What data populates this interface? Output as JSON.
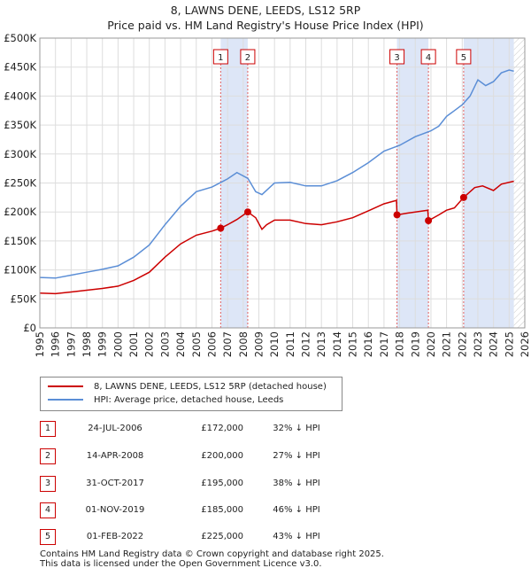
{
  "title_line1": "8, LAWNS DENE, LEEDS, LS12 5RP",
  "title_line2": "Price paid vs. HM Land Registry's House Price Index (HPI)",
  "colors": {
    "property": "#cc0000",
    "hpi": "#5b8ed6",
    "shade": "#dde6f7",
    "grid": "#dddddd"
  },
  "chart_data": {
    "type": "line",
    "title": "8, LAWNS DENE, LEEDS, LS12 5RP — Price paid vs. HM Land Registry's House Price Index (HPI)",
    "xlabel": "",
    "ylabel": "",
    "xlim": [
      1995,
      2026
    ],
    "ylim": [
      0,
      500000
    ],
    "y_ticks": [
      0,
      50000,
      100000,
      150000,
      200000,
      250000,
      300000,
      350000,
      400000,
      450000,
      500000
    ],
    "y_tick_labels": [
      "£0",
      "£50K",
      "£100K",
      "£150K",
      "£200K",
      "£250K",
      "£300K",
      "£350K",
      "£400K",
      "£450K",
      "£500K"
    ],
    "x_ticks": [
      "1995",
      "1996",
      "1997",
      "1998",
      "1999",
      "2000",
      "2001",
      "2002",
      "2003",
      "2004",
      "2005",
      "2006",
      "2007",
      "2008",
      "2009",
      "2010",
      "2011",
      "2012",
      "2013",
      "2014",
      "2015",
      "2016",
      "2017",
      "2018",
      "2019",
      "2020",
      "2021",
      "2022",
      "2023",
      "2024",
      "2025",
      "2026"
    ],
    "grid": true,
    "shaded_ranges": [
      [
        2006.56,
        2008.29
      ],
      [
        2017.83,
        2019.84
      ],
      [
        2022.09,
        2025.3
      ]
    ],
    "future_cutoff": 2025.3,
    "series": [
      {
        "name": "8, LAWNS DENE, LEEDS, LS12 5RP (detached house)",
        "color": "#cc0000",
        "points": [
          [
            1995.0,
            60000
          ],
          [
            1996.0,
            59000
          ],
          [
            1997.0,
            62000
          ],
          [
            1998.0,
            65000
          ],
          [
            1999.0,
            68000
          ],
          [
            2000.0,
            72000
          ],
          [
            2001.0,
            82000
          ],
          [
            2002.0,
            96000
          ],
          [
            2003.0,
            122000
          ],
          [
            2004.0,
            145000
          ],
          [
            2005.0,
            160000
          ],
          [
            2006.0,
            167000
          ],
          [
            2006.56,
            172000
          ],
          [
            2007.0,
            178000
          ],
          [
            2007.6,
            187000
          ],
          [
            2008.29,
            200000
          ],
          [
            2008.8,
            190000
          ],
          [
            2009.2,
            170000
          ],
          [
            2009.5,
            178000
          ],
          [
            2010.0,
            186000
          ],
          [
            2011.0,
            186000
          ],
          [
            2012.0,
            180000
          ],
          [
            2013.0,
            178000
          ],
          [
            2014.0,
            183000
          ],
          [
            2015.0,
            190000
          ],
          [
            2016.0,
            202000
          ],
          [
            2017.0,
            214000
          ],
          [
            2017.8,
            220000
          ],
          [
            2017.83,
            195000
          ],
          [
            2018.5,
            198000
          ],
          [
            2019.0,
            200000
          ],
          [
            2019.8,
            203000
          ],
          [
            2019.84,
            185000
          ],
          [
            2020.5,
            195000
          ],
          [
            2021.0,
            203000
          ],
          [
            2021.5,
            207000
          ],
          [
            2022.09,
            225000
          ],
          [
            2022.8,
            242000
          ],
          [
            2023.3,
            245000
          ],
          [
            2024.0,
            237000
          ],
          [
            2024.5,
            248000
          ],
          [
            2025.3,
            253000
          ]
        ]
      },
      {
        "name": "HPI: Average price, detached house, Leeds",
        "color": "#5b8ed6",
        "points": [
          [
            1995.0,
            87000
          ],
          [
            1996.0,
            86000
          ],
          [
            1997.0,
            91000
          ],
          [
            1998.0,
            96000
          ],
          [
            1999.0,
            101000
          ],
          [
            2000.0,
            107000
          ],
          [
            2001.0,
            122000
          ],
          [
            2002.0,
            143000
          ],
          [
            2003.0,
            178000
          ],
          [
            2004.0,
            210000
          ],
          [
            2005.0,
            235000
          ],
          [
            2006.0,
            243000
          ],
          [
            2007.0,
            257000
          ],
          [
            2007.6,
            268000
          ],
          [
            2008.3,
            258000
          ],
          [
            2008.8,
            235000
          ],
          [
            2009.2,
            230000
          ],
          [
            2010.0,
            250000
          ],
          [
            2011.0,
            251000
          ],
          [
            2012.0,
            245000
          ],
          [
            2013.0,
            245000
          ],
          [
            2014.0,
            254000
          ],
          [
            2015.0,
            268000
          ],
          [
            2016.0,
            285000
          ],
          [
            2017.0,
            305000
          ],
          [
            2018.0,
            315000
          ],
          [
            2019.0,
            330000
          ],
          [
            2019.5,
            335000
          ],
          [
            2020.0,
            340000
          ],
          [
            2020.5,
            348000
          ],
          [
            2021.0,
            365000
          ],
          [
            2021.5,
            375000
          ],
          [
            2022.0,
            385000
          ],
          [
            2022.5,
            400000
          ],
          [
            2023.0,
            428000
          ],
          [
            2023.5,
            418000
          ],
          [
            2024.0,
            425000
          ],
          [
            2024.5,
            440000
          ],
          [
            2025.0,
            445000
          ],
          [
            2025.3,
            443000
          ]
        ]
      }
    ],
    "sales": [
      {
        "label": "1",
        "x": 2006.56,
        "price": 172000
      },
      {
        "label": "2",
        "x": 2008.29,
        "price": 200000
      },
      {
        "label": "3",
        "x": 2017.83,
        "price": 195000
      },
      {
        "label": "4",
        "x": 2019.84,
        "price": 185000
      },
      {
        "label": "5",
        "x": 2022.09,
        "price": 225000
      }
    ]
  },
  "legend": {
    "property_label": "8, LAWNS DENE, LEEDS, LS12 5RP (detached house)",
    "hpi_label": "HPI: Average price, detached house, Leeds"
  },
  "sales_table": [
    {
      "num": "1",
      "date": "24-JUL-2006",
      "price": "£172,000",
      "hpi": "32% ↓ HPI"
    },
    {
      "num": "2",
      "date": "14-APR-2008",
      "price": "£200,000",
      "hpi": "27% ↓ HPI"
    },
    {
      "num": "3",
      "date": "31-OCT-2017",
      "price": "£195,000",
      "hpi": "38% ↓ HPI"
    },
    {
      "num": "4",
      "date": "01-NOV-2019",
      "price": "£185,000",
      "hpi": "46% ↓ HPI"
    },
    {
      "num": "5",
      "date": "01-FEB-2022",
      "price": "£225,000",
      "hpi": "43% ↓ HPI"
    }
  ],
  "footer": {
    "line1": "Contains HM Land Registry data © Crown copyright and database right 2025.",
    "line2": "This data is licensed under the Open Government Licence v3.0."
  }
}
